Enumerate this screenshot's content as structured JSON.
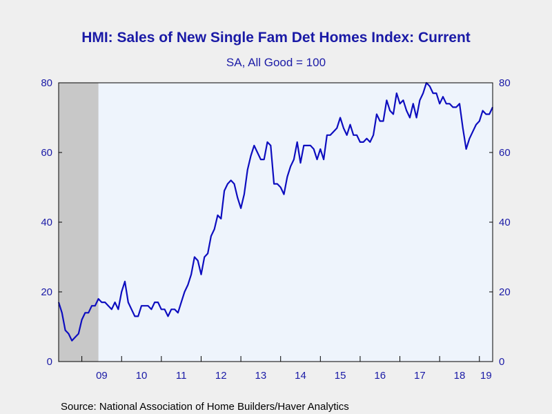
{
  "chart_data": {
    "type": "line",
    "title": "HMI: Sales of New Single Fam Det Homes Index: Current",
    "subtitle": "SA, All Good = 100",
    "source": "Source:  National Association of Home Builders/Haver Analytics",
    "ylim": [
      0,
      80
    ],
    "y_ticks": [
      "0",
      "20",
      "40",
      "60",
      "80"
    ],
    "y_tick_values": [
      0,
      20,
      40,
      60,
      80
    ],
    "x_tick_labels": [
      "09",
      "10",
      "11",
      "12",
      "13",
      "14",
      "15",
      "16",
      "17",
      "18",
      "19"
    ],
    "x_range": [
      "2008-06",
      "2019-05"
    ],
    "recession_shading": {
      "start": "2008-06",
      "end": "2009-06",
      "color": "#c8c8c8"
    },
    "colors": {
      "line": "#0d0dbf",
      "plot_background": "#eef4fc",
      "axis": "#000000",
      "text": "#1a1aa6"
    },
    "series": [
      {
        "color": "#0d0dbf",
        "points": [
          [
            "2008-06",
            17
          ],
          [
            "2008-07",
            14
          ],
          [
            "2008-08",
            9
          ],
          [
            "2008-09",
            8
          ],
          [
            "2008-10",
            6
          ],
          [
            "2008-11",
            7
          ],
          [
            "2008-12",
            8
          ],
          [
            "2009-01",
            12
          ],
          [
            "2009-02",
            14
          ],
          [
            "2009-03",
            14
          ],
          [
            "2009-04",
            16
          ],
          [
            "2009-05",
            16
          ],
          [
            "2009-06",
            18
          ],
          [
            "2009-07",
            17
          ],
          [
            "2009-08",
            17
          ],
          [
            "2009-09",
            16
          ],
          [
            "2009-10",
            15
          ],
          [
            "2009-11",
            17
          ],
          [
            "2009-12",
            15
          ],
          [
            "2010-01",
            20
          ],
          [
            "2010-02",
            23
          ],
          [
            "2010-03",
            17
          ],
          [
            "2010-04",
            15
          ],
          [
            "2010-05",
            13
          ],
          [
            "2010-06",
            13
          ],
          [
            "2010-07",
            16
          ],
          [
            "2010-08",
            16
          ],
          [
            "2010-09",
            16
          ],
          [
            "2010-10",
            15
          ],
          [
            "2010-11",
            17
          ],
          [
            "2010-12",
            17
          ],
          [
            "2011-01",
            15
          ],
          [
            "2011-02",
            15
          ],
          [
            "2011-03",
            13
          ],
          [
            "2011-04",
            15
          ],
          [
            "2011-05",
            15
          ],
          [
            "2011-06",
            14
          ],
          [
            "2011-07",
            17
          ],
          [
            "2011-08",
            20
          ],
          [
            "2011-09",
            22
          ],
          [
            "2011-10",
            25
          ],
          [
            "2011-11",
            30
          ],
          [
            "2011-12",
            29
          ],
          [
            "2012-01",
            25
          ],
          [
            "2012-02",
            30
          ],
          [
            "2012-03",
            31
          ],
          [
            "2012-04",
            36
          ],
          [
            "2012-05",
            38
          ],
          [
            "2012-06",
            42
          ],
          [
            "2012-07",
            41
          ],
          [
            "2012-08",
            49
          ],
          [
            "2012-09",
            51
          ],
          [
            "2012-10",
            52
          ],
          [
            "2012-11",
            51
          ],
          [
            "2012-12",
            47
          ],
          [
            "2013-01",
            44
          ],
          [
            "2013-02",
            48
          ],
          [
            "2013-03",
            55
          ],
          [
            "2013-04",
            59
          ],
          [
            "2013-05",
            62
          ],
          [
            "2013-06",
            60
          ],
          [
            "2013-07",
            58
          ],
          [
            "2013-08",
            58
          ],
          [
            "2013-09",
            63
          ],
          [
            "2013-10",
            62
          ],
          [
            "2013-11",
            51
          ],
          [
            "2013-12",
            51
          ],
          [
            "2014-01",
            50
          ],
          [
            "2014-02",
            48
          ],
          [
            "2014-03",
            53
          ],
          [
            "2014-04",
            56
          ],
          [
            "2014-05",
            58
          ],
          [
            "2014-06",
            63
          ],
          [
            "2014-07",
            57
          ],
          [
            "2014-08",
            62
          ],
          [
            "2014-09",
            62
          ],
          [
            "2014-10",
            62
          ],
          [
            "2014-11",
            61
          ],
          [
            "2014-12",
            58
          ],
          [
            "2015-01",
            61
          ],
          [
            "2015-02",
            58
          ],
          [
            "2015-03",
            65
          ],
          [
            "2015-04",
            65
          ],
          [
            "2015-05",
            66
          ],
          [
            "2015-06",
            67
          ],
          [
            "2015-07",
            70
          ],
          [
            "2015-08",
            67
          ],
          [
            "2015-09",
            65
          ],
          [
            "2015-10",
            68
          ],
          [
            "2015-11",
            65
          ],
          [
            "2015-12",
            65
          ],
          [
            "2016-01",
            63
          ],
          [
            "2016-02",
            63
          ],
          [
            "2016-03",
            64
          ],
          [
            "2016-04",
            63
          ],
          [
            "2016-05",
            65
          ],
          [
            "2016-06",
            71
          ],
          [
            "2016-07",
            69
          ],
          [
            "2016-08",
            69
          ],
          [
            "2016-09",
            75
          ],
          [
            "2016-10",
            72
          ],
          [
            "2016-11",
            71
          ],
          [
            "2016-12",
            77
          ],
          [
            "2017-01",
            74
          ],
          [
            "2017-02",
            75
          ],
          [
            "2017-03",
            72
          ],
          [
            "2017-04",
            70
          ],
          [
            "2017-05",
            74
          ],
          [
            "2017-06",
            70
          ],
          [
            "2017-07",
            75
          ],
          [
            "2017-08",
            77
          ],
          [
            "2017-09",
            80
          ],
          [
            "2017-10",
            79
          ],
          [
            "2017-11",
            77
          ],
          [
            "2017-12",
            77
          ],
          [
            "2018-01",
            74
          ],
          [
            "2018-02",
            76
          ],
          [
            "2018-03",
            74
          ],
          [
            "2018-04",
            74
          ],
          [
            "2018-05",
            73
          ],
          [
            "2018-06",
            73
          ],
          [
            "2018-07",
            74
          ],
          [
            "2018-08",
            67
          ],
          [
            "2018-09",
            61
          ],
          [
            "2018-10",
            64
          ],
          [
            "2018-11",
            66
          ],
          [
            "2018-12",
            68
          ],
          [
            "2019-01",
            69
          ],
          [
            "2019-02",
            72
          ],
          [
            "2019-03",
            71
          ],
          [
            "2019-04",
            71
          ],
          [
            "2019-05",
            73
          ]
        ]
      }
    ]
  }
}
